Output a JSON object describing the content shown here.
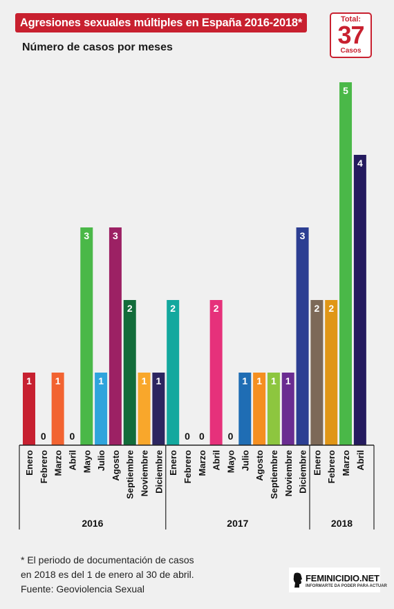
{
  "header": {
    "title": "Agresiones sexuales múltiples en España 2016-2018*",
    "subtitle": "Número de casos por meses"
  },
  "total": {
    "label": "Total:",
    "value": "37",
    "unit": "Casos"
  },
  "footnote": {
    "line1": "* El periodo de documentación de casos",
    "line2": "en 2018 es del 1 de enero al 30 de abril.",
    "source": "Fuente: Geoviolencia Sexual"
  },
  "logo": {
    "name": "FEMINICIDIO.NET",
    "tagline": "INFORMARTE DA PODER PARA ACTUAR"
  },
  "chart_data": {
    "type": "bar",
    "title": "Número de casos por meses",
    "ylim": [
      0,
      5
    ],
    "grid": false,
    "groups": [
      {
        "year": "2016",
        "months": [
          "Enero",
          "Febrero",
          "Marzo",
          "Abril",
          "Mayo",
          "Julio",
          "Agosto",
          "Septiembre",
          "Noviembre",
          "Diciembre"
        ],
        "values": [
          1,
          0,
          1,
          0,
          3,
          1,
          3,
          2,
          1,
          1
        ],
        "colors": [
          "#c72030",
          "#888888",
          "#f26331",
          "#888888",
          "#4ab848",
          "#2fa4dc",
          "#9c2164",
          "#126c3a",
          "#f9a72b",
          "#2c2560"
        ]
      },
      {
        "year": "2017",
        "months": [
          "Enero",
          "Febrero",
          "Marzo",
          "Abril",
          "Mayo",
          "Julio",
          "Agosto",
          "Septiembre",
          "Noviembre",
          "Diciembre"
        ],
        "values": [
          2,
          0,
          0,
          2,
          0,
          1,
          1,
          1,
          1,
          3
        ],
        "colors": [
          "#13a89e",
          "#888888",
          "#888888",
          "#e6317b",
          "#888888",
          "#1f6db4",
          "#f58f20",
          "#8dc63f",
          "#6a2c91",
          "#2c3e92"
        ]
      },
      {
        "year": "2018",
        "months": [
          "Enero",
          "Febrero",
          "Marzo",
          "Abril"
        ],
        "values": [
          2,
          2,
          5,
          4
        ],
        "colors": [
          "#7d6958",
          "#e09617",
          "#4ab848",
          "#241a5e"
        ]
      }
    ]
  }
}
